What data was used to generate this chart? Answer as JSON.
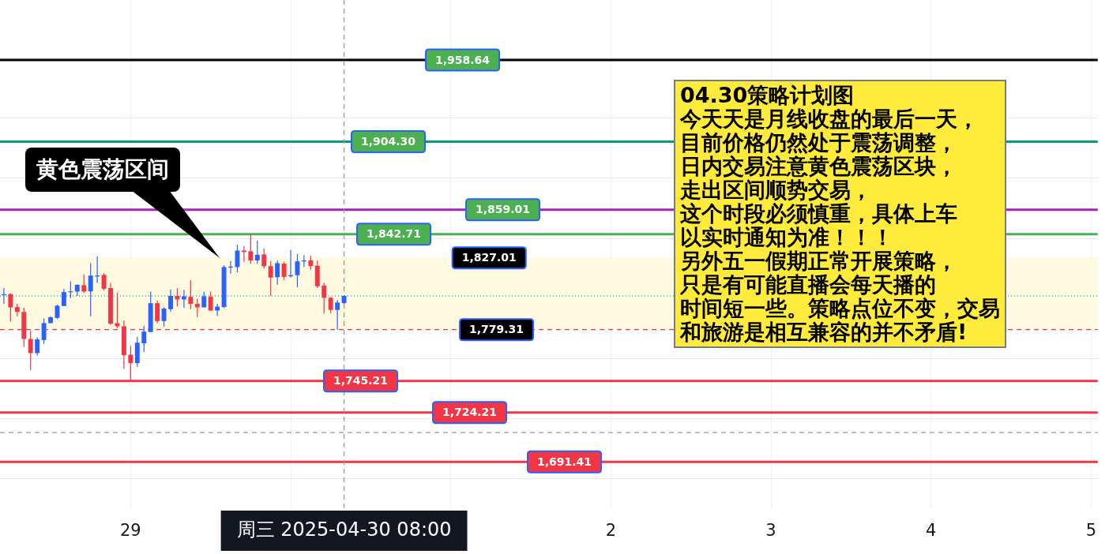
{
  "chart_data": {
    "type": "candlestick",
    "x": [
      "2025-04-28T05:00",
      "2025-04-28T06:00",
      "2025-04-28T07:00",
      "2025-04-28T08:00",
      "2025-04-28T09:00",
      "2025-04-28T10:00",
      "2025-04-28T11:00",
      "2025-04-28T12:00",
      "2025-04-28T13:00",
      "2025-04-28T14:00",
      "2025-04-28T15:00",
      "2025-04-28T16:00",
      "2025-04-28T17:00",
      "2025-04-28T18:00",
      "2025-04-28T19:00",
      "2025-04-28T20:00",
      "2025-04-28T21:00",
      "2025-04-28T22:00",
      "2025-04-28T23:00",
      "2025-04-29T00:00",
      "2025-04-29T01:00",
      "2025-04-29T02:00",
      "2025-04-29T03:00",
      "2025-04-29T04:00",
      "2025-04-29T05:00",
      "2025-04-29T06:00",
      "2025-04-29T07:00",
      "2025-04-29T08:00",
      "2025-04-29T09:00",
      "2025-04-29T10:00",
      "2025-04-29T11:00",
      "2025-04-29T12:00",
      "2025-04-29T13:00",
      "2025-04-29T14:00",
      "2025-04-29T15:00",
      "2025-04-29T16:00",
      "2025-04-29T17:00",
      "2025-04-29T18:00",
      "2025-04-29T19:00",
      "2025-04-29T20:00",
      "2025-04-29T21:00",
      "2025-04-29T22:00",
      "2025-04-29T23:00",
      "2025-04-30T00:00",
      "2025-04-30T01:00",
      "2025-04-30T02:00",
      "2025-04-30T03:00",
      "2025-04-30T04:00",
      "2025-04-30T05:00",
      "2025-04-30T06:00",
      "2025-04-30T07:00",
      "2025-04-30T08:00"
    ],
    "ohlc": [
      [
        1802.5,
        1806.9,
        1796.4,
        1802.8
      ],
      [
        1802.9,
        1803.4,
        1784.7,
        1794.1
      ],
      [
        1794.3,
        1796.4,
        1788.2,
        1791.1
      ],
      [
        1791.1,
        1793.8,
        1767.9,
        1773.1
      ],
      [
        1773.1,
        1778.7,
        1752.2,
        1763.7
      ],
      [
        1763.7,
        1774.2,
        1761.9,
        1772.8
      ],
      [
        1772.4,
        1786.8,
        1769.8,
        1783.6
      ],
      [
        1783.6,
        1788.2,
        1783.6,
        1787.5
      ],
      [
        1787.1,
        1795.9,
        1786.3,
        1795.2
      ],
      [
        1795.0,
        1806.4,
        1795.0,
        1804.3
      ],
      [
        1804.5,
        1811.3,
        1800.2,
        1804.8
      ],
      [
        1804.6,
        1809.5,
        1801.7,
        1809.1
      ],
      [
        1808.9,
        1816.0,
        1803.7,
        1804.7
      ],
      [
        1804.7,
        1823.5,
        1788.2,
        1815.2
      ],
      [
        1815.1,
        1827.9,
        1810.4,
        1815.3
      ],
      [
        1815.7,
        1816.9,
        1805.2,
        1806.5
      ],
      [
        1806.9,
        1810.4,
        1782.4,
        1783.3
      ],
      [
        1783.6,
        1803.9,
        1780.1,
        1781.5
      ],
      [
        1781.5,
        1785.4,
        1753.2,
        1762.3
      ],
      [
        1762.6,
        1768.4,
        1745.2,
        1757.0
      ],
      [
        1757.0,
        1774.5,
        1754.4,
        1770.6
      ],
      [
        1770.2,
        1781.9,
        1764.4,
        1778.0
      ],
      [
        1777.7,
        1804.6,
        1777.7,
        1796.9
      ],
      [
        1796.9,
        1798.6,
        1783.6,
        1785.0
      ],
      [
        1785.0,
        1794.2,
        1781.2,
        1793.3
      ],
      [
        1792.9,
        1806.0,
        1791.2,
        1801.7
      ],
      [
        1801.7,
        1806.9,
        1794.7,
        1799.4
      ],
      [
        1799.4,
        1805.6,
        1793.8,
        1801.5
      ],
      [
        1801.1,
        1812.2,
        1792.9,
        1796.4
      ],
      [
        1796.4,
        1799.9,
        1787.6,
        1794.1
      ],
      [
        1794.1,
        1804.6,
        1794.1,
        1801.5
      ],
      [
        1801.1,
        1804.6,
        1791.7,
        1792.0
      ],
      [
        1792.0,
        1796.4,
        1788.5,
        1794.6
      ],
      [
        1794.3,
        1822.1,
        1793.8,
        1820.9
      ],
      [
        1820.7,
        1824.9,
        1816.5,
        1821.2
      ],
      [
        1820.9,
        1835.8,
        1817.4,
        1831.9
      ],
      [
        1831.9,
        1834.9,
        1824.4,
        1830.9
      ],
      [
        1831.4,
        1842.8,
        1823.2,
        1825.3
      ],
      [
        1825.3,
        1838.4,
        1823.2,
        1829.1
      ],
      [
        1829.3,
        1833.2,
        1820.0,
        1821.5
      ],
      [
        1821.5,
        1824.9,
        1801.7,
        1813.9
      ],
      [
        1814.2,
        1825.3,
        1809.2,
        1823.5
      ],
      [
        1823.2,
        1824.4,
        1812.2,
        1814.4
      ],
      [
        1814.8,
        1832.3,
        1813.9,
        1815.5
      ],
      [
        1815.5,
        1829.6,
        1807.4,
        1824.7
      ],
      [
        1824.9,
        1828.8,
        1820.9,
        1825.3
      ],
      [
        1825.3,
        1828.4,
        1819.1,
        1821.5
      ],
      [
        1821.8,
        1825.3,
        1806.9,
        1808.1
      ],
      [
        1808.6,
        1810.4,
        1790.0,
        1800.5
      ],
      [
        1800.5,
        1801.1,
        1790.3,
        1792.4
      ],
      [
        1792.4,
        1799.0,
        1779.3,
        1797.3
      ],
      [
        1796.9,
        1802.0,
        1796.4,
        1801.7
      ]
    ],
    "colors": [
      "#2962ff",
      "#f23645",
      "#f23645",
      "#f23645",
      "#f23645",
      "#2962ff",
      "#2962ff",
      "#2962ff",
      "#2962ff",
      "#2962ff",
      "#2962ff",
      "#2962ff",
      "#f23645",
      "#2962ff",
      "#2962ff",
      "#f23645",
      "#f23645",
      "#f23645",
      "#f23645",
      "#f23645",
      "#2962ff",
      "#2962ff",
      "#2962ff",
      "#f23645",
      "#2962ff",
      "#2962ff",
      "#f23645",
      "#2962ff",
      "#f23645",
      "#f23645",
      "#2962ff",
      "#f23645",
      "#2962ff",
      "#2962ff",
      "#2962ff",
      "#2962ff",
      "#f23645",
      "#f23645",
      "#2962ff",
      "#f23645",
      "#f23645",
      "#2962ff",
      "#f23645",
      "#2962ff",
      "#2962ff",
      "#2962ff",
      "#f23645",
      "#f23645",
      "#f23645",
      "#f23645",
      "#2962ff",
      "#2962ff"
    ],
    "xlim": [
      "2025-04-28T04:25",
      "2025-05-05T01:00"
    ],
    "xticks": [
      {
        "value": "2025-04-29",
        "label": "29"
      },
      {
        "value": "2025-04-30",
        "label": null
      },
      {
        "value": "2025-05-01",
        "label": null
      },
      {
        "value": "2025-05-02",
        "label": "2"
      },
      {
        "value": "2025-05-03",
        "label": "3"
      },
      {
        "value": "2025-05-04",
        "label": "4"
      },
      {
        "value": "2025-05-05",
        "label": "5"
      }
    ],
    "ylim": [
      1660,
      1998.5
    ],
    "yticks": [
      {
        "value": 1680,
        "label": null
      },
      {
        "value": 1720,
        "label": null
      },
      {
        "value": 1760,
        "label": null
      },
      {
        "value": 1840,
        "label": null
      },
      {
        "value": 1880,
        "label": null
      },
      {
        "value": 1920,
        "label": null
      },
      {
        "value": 1960,
        "label": null
      }
    ],
    "tick_labels": "x",
    "grid": true,
    "ref_lines": [
      {
        "axis": "y",
        "value": 1958.64,
        "label": "1,958.64",
        "color": "#000000"
      },
      {
        "axis": "y",
        "value": 1904.3,
        "label": "1,904.30",
        "color": "#089981"
      },
      {
        "axis": "y",
        "value": 1859.01,
        "label": "1,859.01",
        "color": "#9c27b0"
      },
      {
        "axis": "y",
        "value": 1842.71,
        "label": "1,842.71",
        "color": "#4caf50"
      },
      {
        "axis": "y",
        "value": 1801.7,
        "color": "#00bcd4",
        "line_style": "dotted"
      },
      {
        "axis": "y",
        "value": 1779.31,
        "label": "1,779.31",
        "color": "#f23645",
        "line_style": "dashed"
      },
      {
        "axis": "y",
        "value": 1745.21,
        "label": "1,745.21",
        "color": "#f23645"
      },
      {
        "axis": "y",
        "value": 1724.21,
        "label": "1,724.21",
        "color": "#f23645"
      },
      {
        "axis": "y",
        "value": 1710.8,
        "color": "#9598a1",
        "line_style": "dashed"
      },
      {
        "axis": "y",
        "value": 1691.41,
        "label": "1,691.41",
        "color": "#f23645"
      },
      {
        "axis": "x",
        "value": "2025-04-30T08:00",
        "label": "周三 2025-04-30 08:00",
        "color": "#9598a1",
        "line_style": "dashed"
      }
    ],
    "bands": [
      {
        "axis": "y",
        "from": 1779.31,
        "to": 1827.01,
        "label": "黄色震荡区间",
        "color": "#fff9e0"
      }
    ],
    "annotations": [
      "04.30策略计划图",
      "今天天是月线收盘的最后一天，",
      "目前价格仍然处于震荡调整，",
      "日内交易注意黄色震荡区块，",
      "走出区间顺势交易，",
      "这个时段必须慎重，具体上车",
      "以实时通知为准！！！",
      "另外五一假期正常开展策略，",
      "只是有可能直播会每天播的",
      "时间短一些。策略点位不变，交易",
      "和旅游是相互兼容的并不矛盾!",
      {
        "text": "1,827.01",
        "x": "2025-05-01T00:00",
        "y": 1827.01
      }
    ]
  }
}
